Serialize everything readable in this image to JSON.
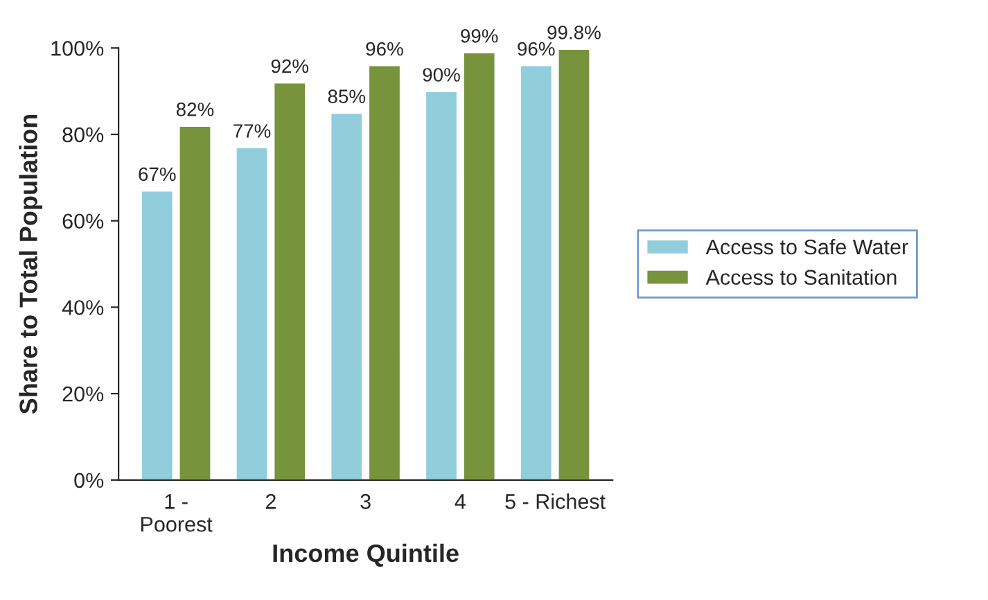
{
  "chart_data": {
    "type": "bar",
    "xlabel": "Income Quintile",
    "ylabel": "Share to Total Population",
    "categories": [
      "1 -\nPoorest",
      "2",
      "3",
      "4",
      "5 - Richest"
    ],
    "series": [
      {
        "name": "Access to Safe Water",
        "color": "#92cddc",
        "values": [
          67,
          77,
          85,
          90,
          96
        ],
        "value_labels": [
          "67%",
          "77%",
          "85%",
          "90%",
          "96%"
        ]
      },
      {
        "name": "Access to Sanitation",
        "color": "#77933c",
        "values": [
          82,
          92,
          96,
          99,
          99.8
        ],
        "value_labels": [
          "82%",
          "92%",
          "96%",
          "99%",
          "99.8%"
        ]
      }
    ],
    "ylim": [
      0,
      100
    ],
    "yticks": [
      {
        "value": 0,
        "label": "0%"
      },
      {
        "value": 20,
        "label": "20%"
      },
      {
        "value": 40,
        "label": "40%"
      },
      {
        "value": 60,
        "label": "60%"
      },
      {
        "value": 80,
        "label": "80%"
      },
      {
        "value": 100,
        "label": "100%"
      }
    ],
    "grid": false,
    "legend": "right"
  }
}
